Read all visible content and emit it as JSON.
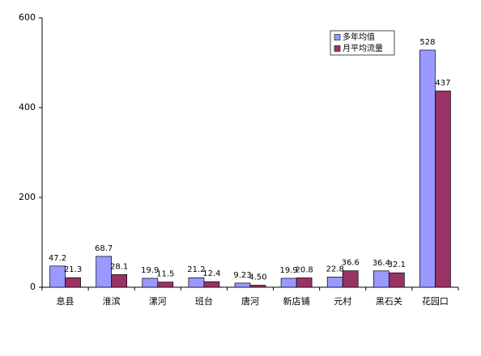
{
  "chart_data": {
    "type": "bar",
    "categories": [
      "息县",
      "淮滨",
      "漯河",
      "班台",
      "唐河",
      "新店铺",
      "元村",
      "黑石关",
      "花园口"
    ],
    "series": [
      {
        "name": "多年均值",
        "color": "#9999ff",
        "values": [
          47.2,
          68.7,
          19.9,
          21.2,
          9.23,
          19.9,
          22.8,
          36.4,
          528
        ]
      },
      {
        "name": "月平均流量",
        "color": "#993366",
        "values": [
          21.3,
          28.1,
          11.5,
          12.4,
          4.5,
          20.8,
          36.6,
          32.1,
          437
        ],
        "value_labels": [
          "21.3",
          "28.1",
          "11.5",
          "12.4",
          "4.50",
          "20.8",
          "36.6",
          "32.1",
          "437"
        ]
      }
    ],
    "ylim": [
      0,
      600
    ],
    "yticks": [
      0,
      200,
      400,
      600
    ],
    "grid": false,
    "legend": "top-right"
  }
}
